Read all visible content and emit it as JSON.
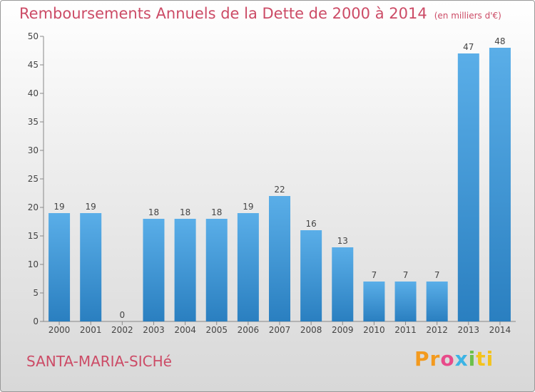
{
  "header": {
    "title": "Remboursements Annuels de la Dette de 2000 à 2014",
    "unit": "(en milliers d'€)"
  },
  "footer": {
    "commune": "SANTA-MARIA-SICHé",
    "logo_parts": [
      "Pr",
      "o",
      "x",
      "i",
      "ti"
    ]
  },
  "colors": {
    "bar_light": "#5aaee8",
    "bar_dark": "#2a7fc0",
    "title": "#cc4b66"
  },
  "chart_data": {
    "type": "bar",
    "title": "Remboursements Annuels de la Dette de 2000 à 2014",
    "xlabel": "",
    "ylabel": "",
    "categories": [
      "2000",
      "2001",
      "2002",
      "2003",
      "2004",
      "2005",
      "2006",
      "2007",
      "2008",
      "2009",
      "2010",
      "2011",
      "2012",
      "2013",
      "2014"
    ],
    "values": [
      19,
      19,
      0,
      18,
      18,
      18,
      19,
      22,
      16,
      13,
      7,
      7,
      7,
      47,
      48
    ],
    "ylim": [
      0,
      50
    ],
    "yticks": [
      0,
      5,
      10,
      15,
      20,
      25,
      30,
      35,
      40,
      45,
      50
    ],
    "grid": false
  }
}
